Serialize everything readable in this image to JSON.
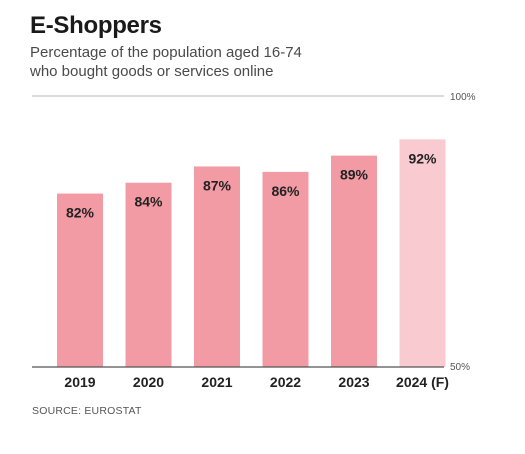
{
  "header": {
    "title": "E-Shoppers",
    "subtitle_lines": [
      "Percentage of the population aged 16-74",
      "who bought goods or services online"
    ]
  },
  "source": "SOURCE: EUROSTAT",
  "colors": {
    "bar": "#f39ba5",
    "bar_forecast": "#f9cbd0",
    "text": "#222222",
    "axis": "#555555",
    "grid": "#b5b5b5"
  },
  "chart_data": {
    "type": "bar",
    "categories": [
      "2019",
      "2020",
      "2021",
      "2022",
      "2023",
      "2024 (F)"
    ],
    "values": [
      82,
      84,
      87,
      86,
      89,
      92
    ],
    "value_labels": [
      "82%",
      "84%",
      "87%",
      "86%",
      "89%",
      "92%"
    ],
    "forecast_index": 5,
    "ylim": [
      50,
      100
    ],
    "ytick_labels": [
      "50%",
      "100%"
    ],
    "grid": false,
    "title": "E-Shoppers",
    "subtitle": "Percentage of the population aged 16-74 who bought goods or services online",
    "xlabel": "",
    "ylabel": ""
  }
}
